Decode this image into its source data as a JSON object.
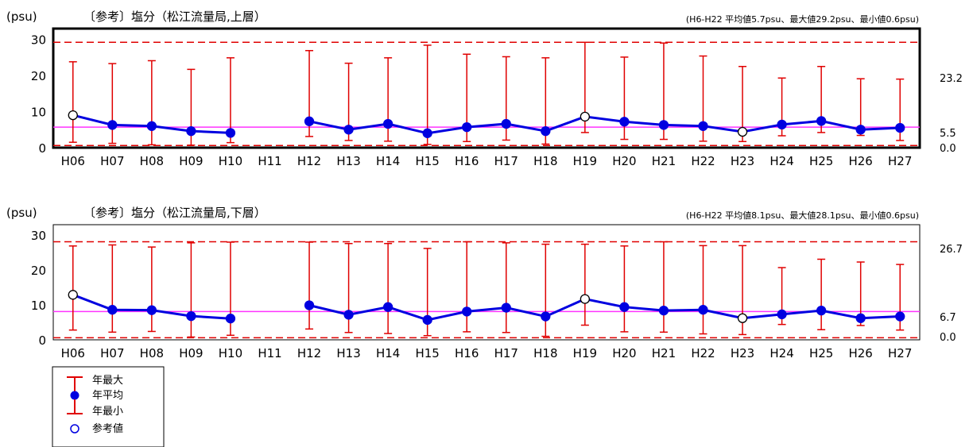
{
  "chart_data": [
    {
      "type": "line",
      "y_unit": "(psu)",
      "title": "〔参考〕塩分（松江流量局,上層）",
      "stats_note": "(H6-H22 平均値5.7psu、最大値29.2psu、最小値0.6psu)",
      "categories": [
        "H06",
        "H07",
        "H08",
        "H09",
        "H10",
        "H11",
        "H12",
        "H13",
        "H14",
        "H15",
        "H16",
        "H17",
        "H18",
        "H19",
        "H20",
        "H21",
        "H22",
        "H23",
        "H24",
        "H25",
        "H26",
        "H27"
      ],
      "ylim": [
        0,
        33
      ],
      "yticks": [
        "0",
        "10",
        "20",
        "30"
      ],
      "series": [
        {
          "name": "年最大",
          "values": [
            23.8,
            23.3,
            24.1,
            21.7,
            24.9,
            null,
            26.9,
            23.4,
            24.9,
            28.4,
            25.9,
            25.2,
            24.9,
            29.2,
            25.1,
            29.0,
            25.4,
            22.5,
            19.3,
            22.5,
            19.1,
            19.0
          ]
        },
        {
          "name": "年平均",
          "values": [
            9.0,
            6.3,
            6.0,
            4.6,
            4.1,
            null,
            7.3,
            5.0,
            6.6,
            4.0,
            5.7,
            6.6,
            4.6,
            8.6,
            7.2,
            6.3,
            6.0,
            4.4,
            6.4,
            7.4,
            5.0,
            5.5
          ]
        },
        {
          "name": "年最小",
          "values": [
            1.5,
            1.2,
            0.8,
            0.7,
            1.4,
            null,
            3.1,
            2.0,
            1.8,
            0.9,
            1.7,
            2.1,
            1.0,
            4.2,
            2.3,
            2.3,
            1.8,
            1.7,
            3.3,
            4.2,
            3.4,
            2.0
          ]
        }
      ],
      "reference_points": [
        "H06",
        "H19",
        "H23"
      ],
      "ref_lines": {
        "max": 29.2,
        "mean": 5.7,
        "min": 0.6
      },
      "side_labels": {
        "upper": "23.2",
        "mean": "5.5",
        "lower": "0.0"
      },
      "colors": {
        "max_min": "#e00000",
        "mean": "#0000e0",
        "avg_line": "#ff33ff"
      }
    },
    {
      "type": "line",
      "y_unit": "(psu)",
      "title": "〔参考〕塩分（松江流量局,下層）",
      "stats_note": "(H6-H22 平均値8.1psu、最大値28.1psu、最小値0.6psu)",
      "categories": [
        "H06",
        "H07",
        "H08",
        "H09",
        "H10",
        "H11",
        "H12",
        "H13",
        "H14",
        "H15",
        "H16",
        "H17",
        "H18",
        "H19",
        "H20",
        "H21",
        "H22",
        "H23",
        "H24",
        "H25",
        "H26",
        "H27"
      ],
      "ylim": [
        0,
        33
      ],
      "yticks": [
        "0",
        "10",
        "20",
        "30"
      ],
      "series": [
        {
          "name": "年最大",
          "values": [
            26.9,
            27.2,
            26.6,
            27.8,
            28.0,
            null,
            28.0,
            27.6,
            27.6,
            26.2,
            28.1,
            27.8,
            27.4,
            27.4,
            26.9,
            28.1,
            27.0,
            27.0,
            20.7,
            23.1,
            22.3,
            21.6
          ]
        },
        {
          "name": "年平均",
          "values": [
            12.9,
            8.6,
            8.5,
            6.8,
            6.1,
            null,
            9.9,
            7.2,
            9.4,
            5.7,
            8.1,
            9.2,
            6.7,
            11.7,
            9.4,
            8.4,
            8.6,
            6.2,
            7.3,
            8.4,
            6.2,
            6.7
          ]
        },
        {
          "name": "年最小",
          "values": [
            2.8,
            2.2,
            2.4,
            0.8,
            1.3,
            null,
            3.1,
            2.1,
            1.8,
            1.2,
            2.3,
            2.1,
            1.0,
            4.2,
            2.3,
            2.2,
            1.7,
            1.5,
            4.4,
            2.9,
            4.1,
            2.8
          ]
        }
      ],
      "reference_points": [
        "H06",
        "H19",
        "H23"
      ],
      "ref_lines": {
        "max": 28.1,
        "mean": 8.1,
        "min": 0.6
      },
      "side_labels": {
        "upper": "26.7",
        "mean": "6.7",
        "lower": "0.0"
      },
      "colors": {
        "max_min": "#e00000",
        "mean": "#0000e0",
        "avg_line": "#ff33ff"
      }
    }
  ],
  "legend": {
    "items": [
      {
        "key": "max",
        "label": "年最大"
      },
      {
        "key": "mean",
        "label": "年平均"
      },
      {
        "key": "min",
        "label": "年最小"
      },
      {
        "key": "ref",
        "label": "参考値"
      }
    ]
  }
}
